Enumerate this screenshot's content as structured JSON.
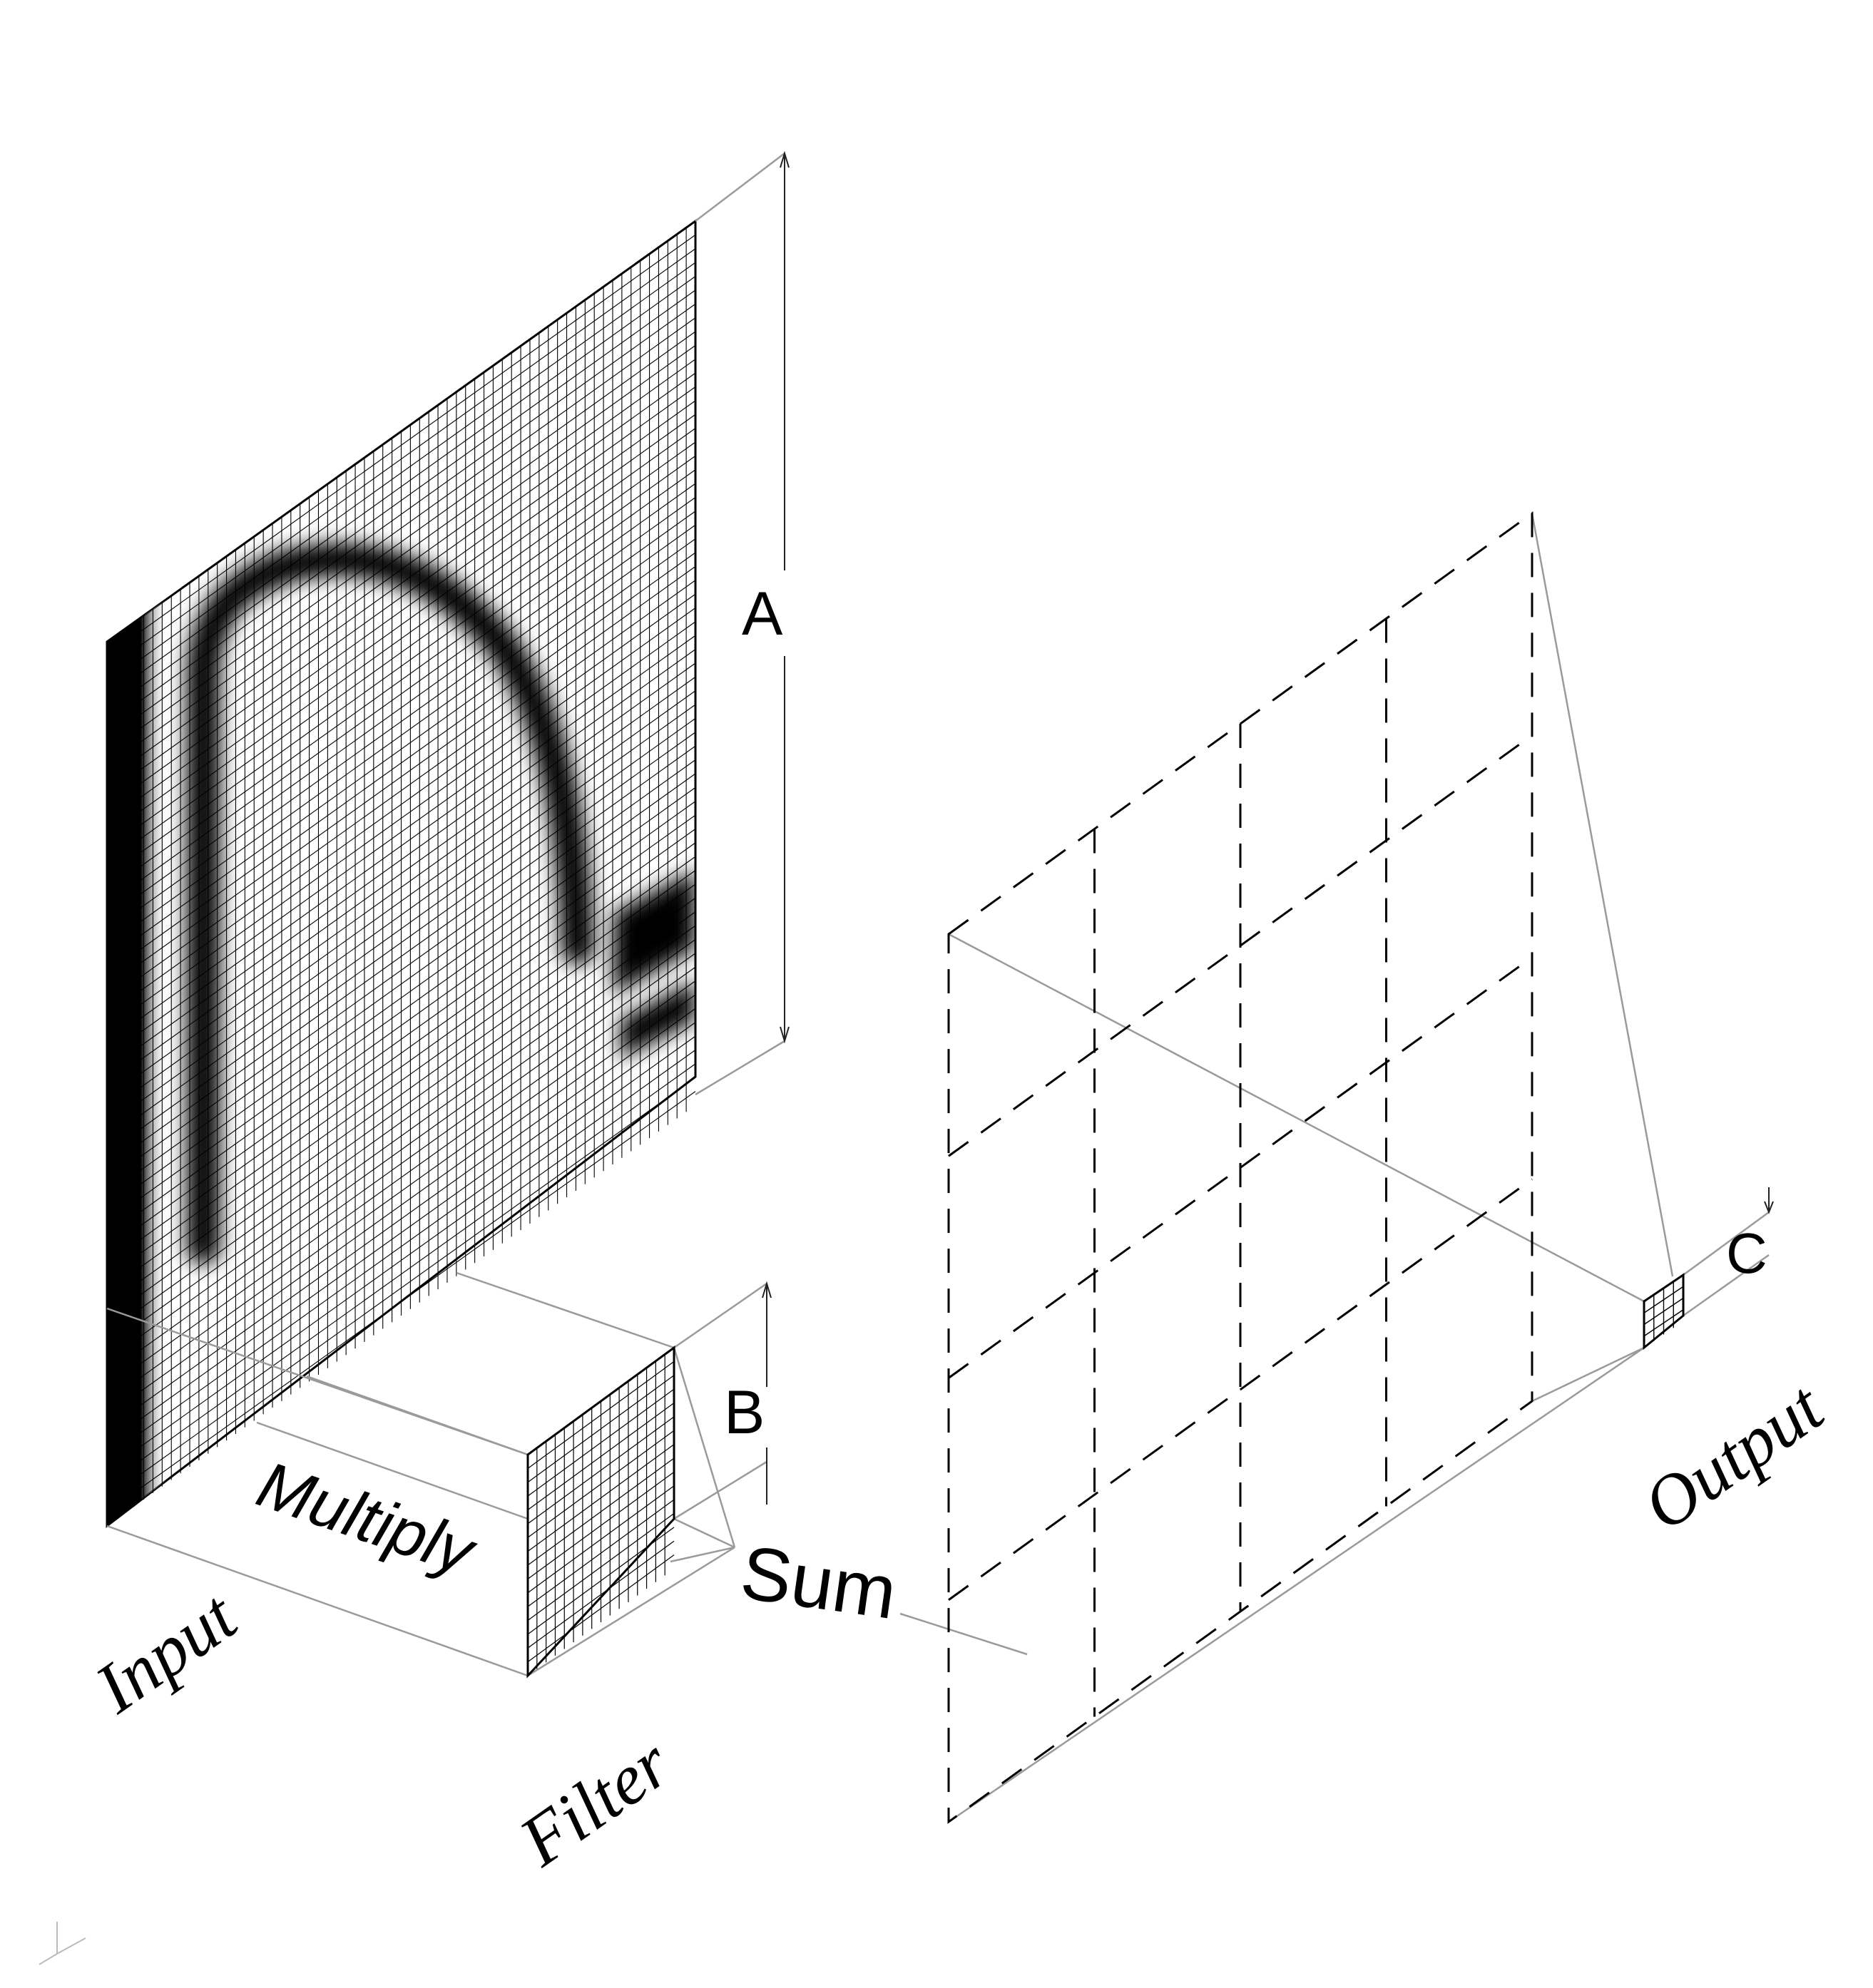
{
  "labels": {
    "input": "Input",
    "filter": "Filter",
    "output": "Output",
    "multiply": "Multiply",
    "sum": "Sum",
    "dim_a": "A",
    "dim_b": "B",
    "dim_c": "C"
  },
  "grids": {
    "input_cells": 64,
    "filter_cells": 16,
    "output_cells": 4,
    "output_plane_cells": 4
  },
  "colors": {
    "line": "#000000",
    "guide": "#9a9a9a",
    "background": "#ffffff"
  }
}
